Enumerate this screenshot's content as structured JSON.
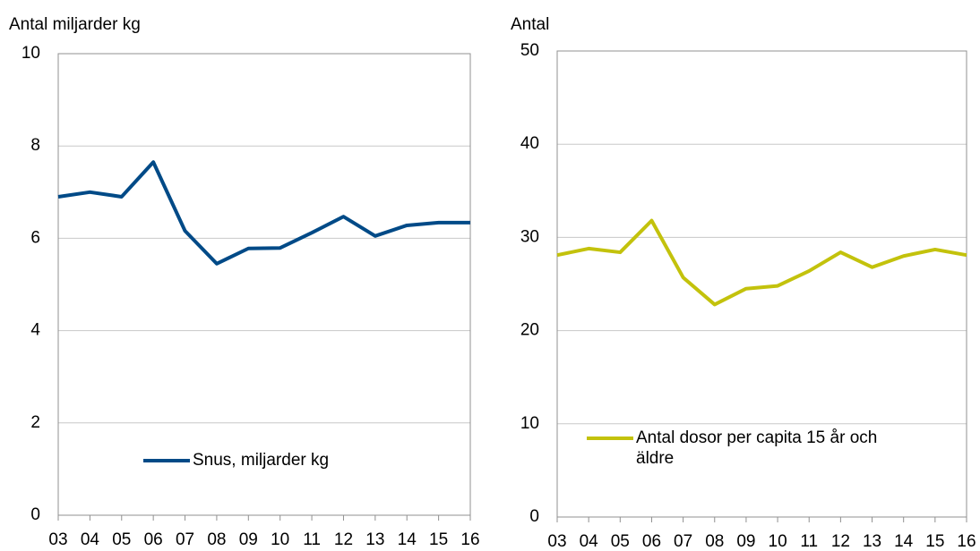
{
  "chart_data": [
    {
      "type": "line",
      "y_label": "Antal miljarder kg",
      "categories": [
        "03",
        "04",
        "05",
        "06",
        "07",
        "08",
        "09",
        "10",
        "11",
        "12",
        "13",
        "14",
        "15",
        "16"
      ],
      "series": [
        {
          "name": "Snus, miljarder kg",
          "color": "#004a87",
          "values": [
            6.9,
            7.0,
            6.9,
            7.65,
            6.16,
            5.45,
            5.78,
            5.79,
            6.12,
            6.47,
            6.05,
            6.28,
            6.34,
            6.34
          ]
        }
      ],
      "ylim": [
        0,
        10
      ],
      "yticks": [
        0,
        2,
        4,
        6,
        8,
        10
      ],
      "grid": true
    },
    {
      "type": "line",
      "y_label": "Antal",
      "categories": [
        "03",
        "04",
        "05",
        "06",
        "07",
        "08",
        "09",
        "10",
        "11",
        "12",
        "13",
        "14",
        "15",
        "16"
      ],
      "series": [
        {
          "name": "Antal dosor per capita 15 år och äldre",
          "color": "#c3c20c",
          "values": [
            28.1,
            28.8,
            28.4,
            31.8,
            25.7,
            22.8,
            24.5,
            24.8,
            26.4,
            28.4,
            26.8,
            28.0,
            28.7,
            28.1
          ]
        }
      ],
      "ylim": [
        0,
        50
      ],
      "yticks": [
        0,
        10,
        20,
        30,
        40,
        50
      ],
      "grid": true
    }
  ]
}
